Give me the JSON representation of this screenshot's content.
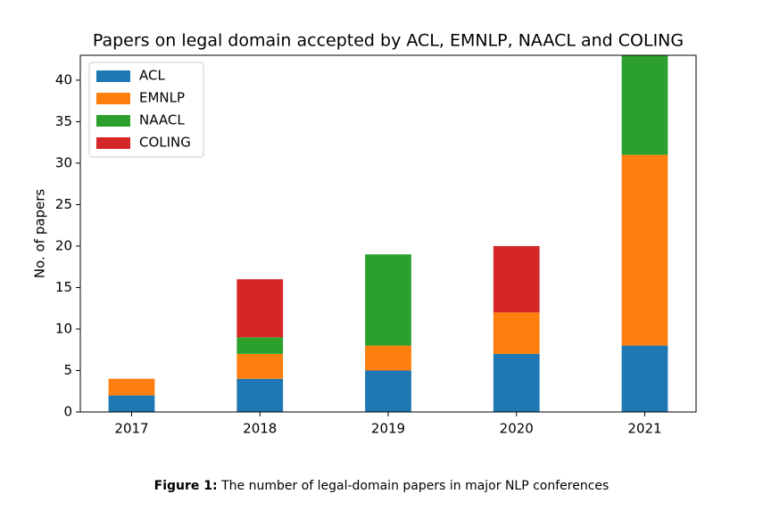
{
  "chart_data": {
    "type": "stacked_bar",
    "title": "Papers on legal domain accepted by ACL, EMNLP, NAACL and COLING",
    "y_label": "No. of papers",
    "categories": [
      "2017",
      "2018",
      "2019",
      "2020",
      "2021"
    ],
    "series": [
      {
        "name": "ACL",
        "color": "#1f77b4",
        "values": [
          2,
          4,
          5,
          7,
          8
        ]
      },
      {
        "name": "EMNLP",
        "color": "#ff7f0e",
        "values": [
          2,
          3,
          3,
          5,
          23
        ]
      },
      {
        "name": "NAACL",
        "color": "#2ca02c",
        "values": [
          0,
          2,
          11,
          0,
          12
        ]
      },
      {
        "name": "COLING",
        "color": "#d62728",
        "values": [
          0,
          7,
          0,
          8,
          0
        ]
      }
    ],
    "ylim": [
      0,
      43
    ],
    "yticks": [
      0,
      5,
      10,
      15,
      20,
      25,
      30,
      35,
      40
    ],
    "grid": false,
    "legend": "upper left"
  },
  "caption": {
    "label": "Figure 1:",
    "text": "The number of legal-domain papers in major NLP conferences"
  }
}
